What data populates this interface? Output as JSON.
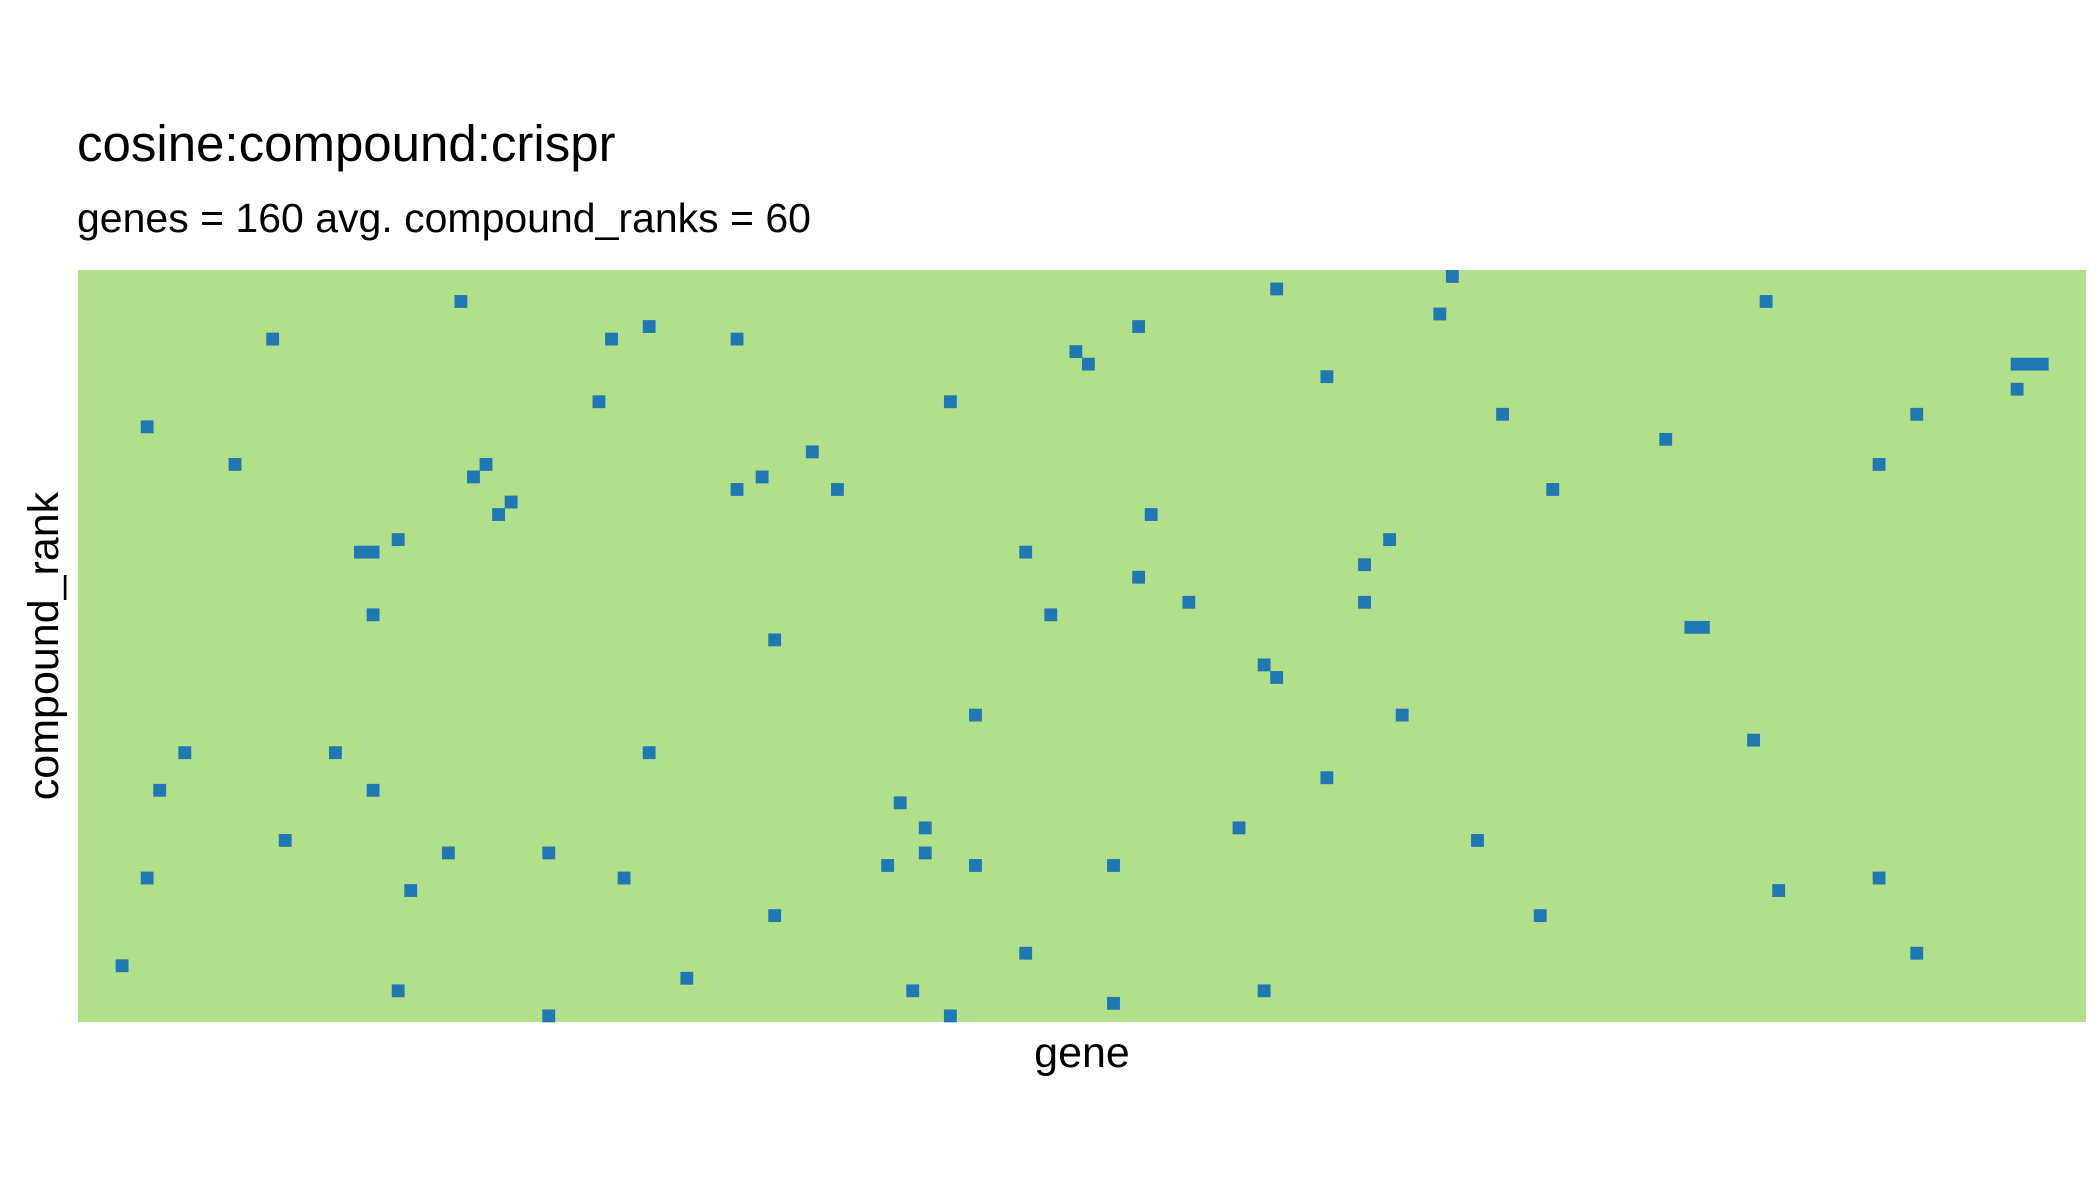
{
  "chart_data": {
    "type": "heatmap",
    "title": "cosine:compound:crispr",
    "subtitle": "genes = 160 avg. compound_ranks = 60",
    "xlabel": "gene",
    "ylabel": "compound_rank",
    "n_cols": 160,
    "n_rows": 60,
    "x_ticks": [],
    "y_ticks": [],
    "grid": false,
    "legend": "none",
    "colors": {
      "background": "#b2df8a",
      "hit": "#1f78b4"
    },
    "hits": [
      [
        3,
        55
      ],
      [
        5,
        12
      ],
      [
        5,
        48
      ],
      [
        6,
        41
      ],
      [
        8,
        38
      ],
      [
        12,
        15
      ],
      [
        15,
        5
      ],
      [
        16,
        45
      ],
      [
        20,
        38
      ],
      [
        22,
        22
      ],
      [
        23,
        22
      ],
      [
        23,
        27
      ],
      [
        23,
        41
      ],
      [
        25,
        57
      ],
      [
        25,
        21
      ],
      [
        26,
        49
      ],
      [
        29,
        46
      ],
      [
        30,
        2
      ],
      [
        31,
        16
      ],
      [
        32,
        15
      ],
      [
        33,
        19
      ],
      [
        34,
        18
      ],
      [
        37,
        46
      ],
      [
        37,
        59
      ],
      [
        41,
        10
      ],
      [
        42,
        5
      ],
      [
        43,
        48
      ],
      [
        45,
        4
      ],
      [
        45,
        38
      ],
      [
        48,
        56
      ],
      [
        52,
        5
      ],
      [
        52,
        17
      ],
      [
        54,
        16
      ],
      [
        55,
        29
      ],
      [
        55,
        51
      ],
      [
        58,
        14
      ],
      [
        60,
        17
      ],
      [
        64,
        47
      ],
      [
        65,
        42
      ],
      [
        66,
        57
      ],
      [
        67,
        44
      ],
      [
        67,
        46
      ],
      [
        69,
        10
      ],
      [
        69,
        59
      ],
      [
        71,
        35
      ],
      [
        71,
        47
      ],
      [
        75,
        22
      ],
      [
        75,
        54
      ],
      [
        77,
        27
      ],
      [
        79,
        6
      ],
      [
        80,
        7
      ],
      [
        82,
        47
      ],
      [
        82,
        58
      ],
      [
        84,
        4
      ],
      [
        84,
        24
      ],
      [
        85,
        19
      ],
      [
        88,
        26
      ],
      [
        92,
        44
      ],
      [
        94,
        31
      ],
      [
        94,
        57
      ],
      [
        95,
        1
      ],
      [
        95,
        32
      ],
      [
        99,
        8
      ],
      [
        99,
        40
      ],
      [
        102,
        26
      ],
      [
        102,
        23
      ],
      [
        104,
        21
      ],
      [
        105,
        35
      ],
      [
        108,
        3
      ],
      [
        109,
        0
      ],
      [
        111,
        45
      ],
      [
        113,
        11
      ],
      [
        116,
        51
      ],
      [
        117,
        17
      ],
      [
        126,
        13
      ],
      [
        128,
        28
      ],
      [
        129,
        28
      ],
      [
        133,
        37
      ],
      [
        134,
        2
      ],
      [
        135,
        49
      ],
      [
        143,
        15
      ],
      [
        143,
        48
      ],
      [
        146,
        11
      ],
      [
        146,
        54
      ],
      [
        154,
        9
      ],
      [
        154,
        7
      ],
      [
        155,
        7
      ],
      [
        156,
        7
      ]
    ]
  }
}
